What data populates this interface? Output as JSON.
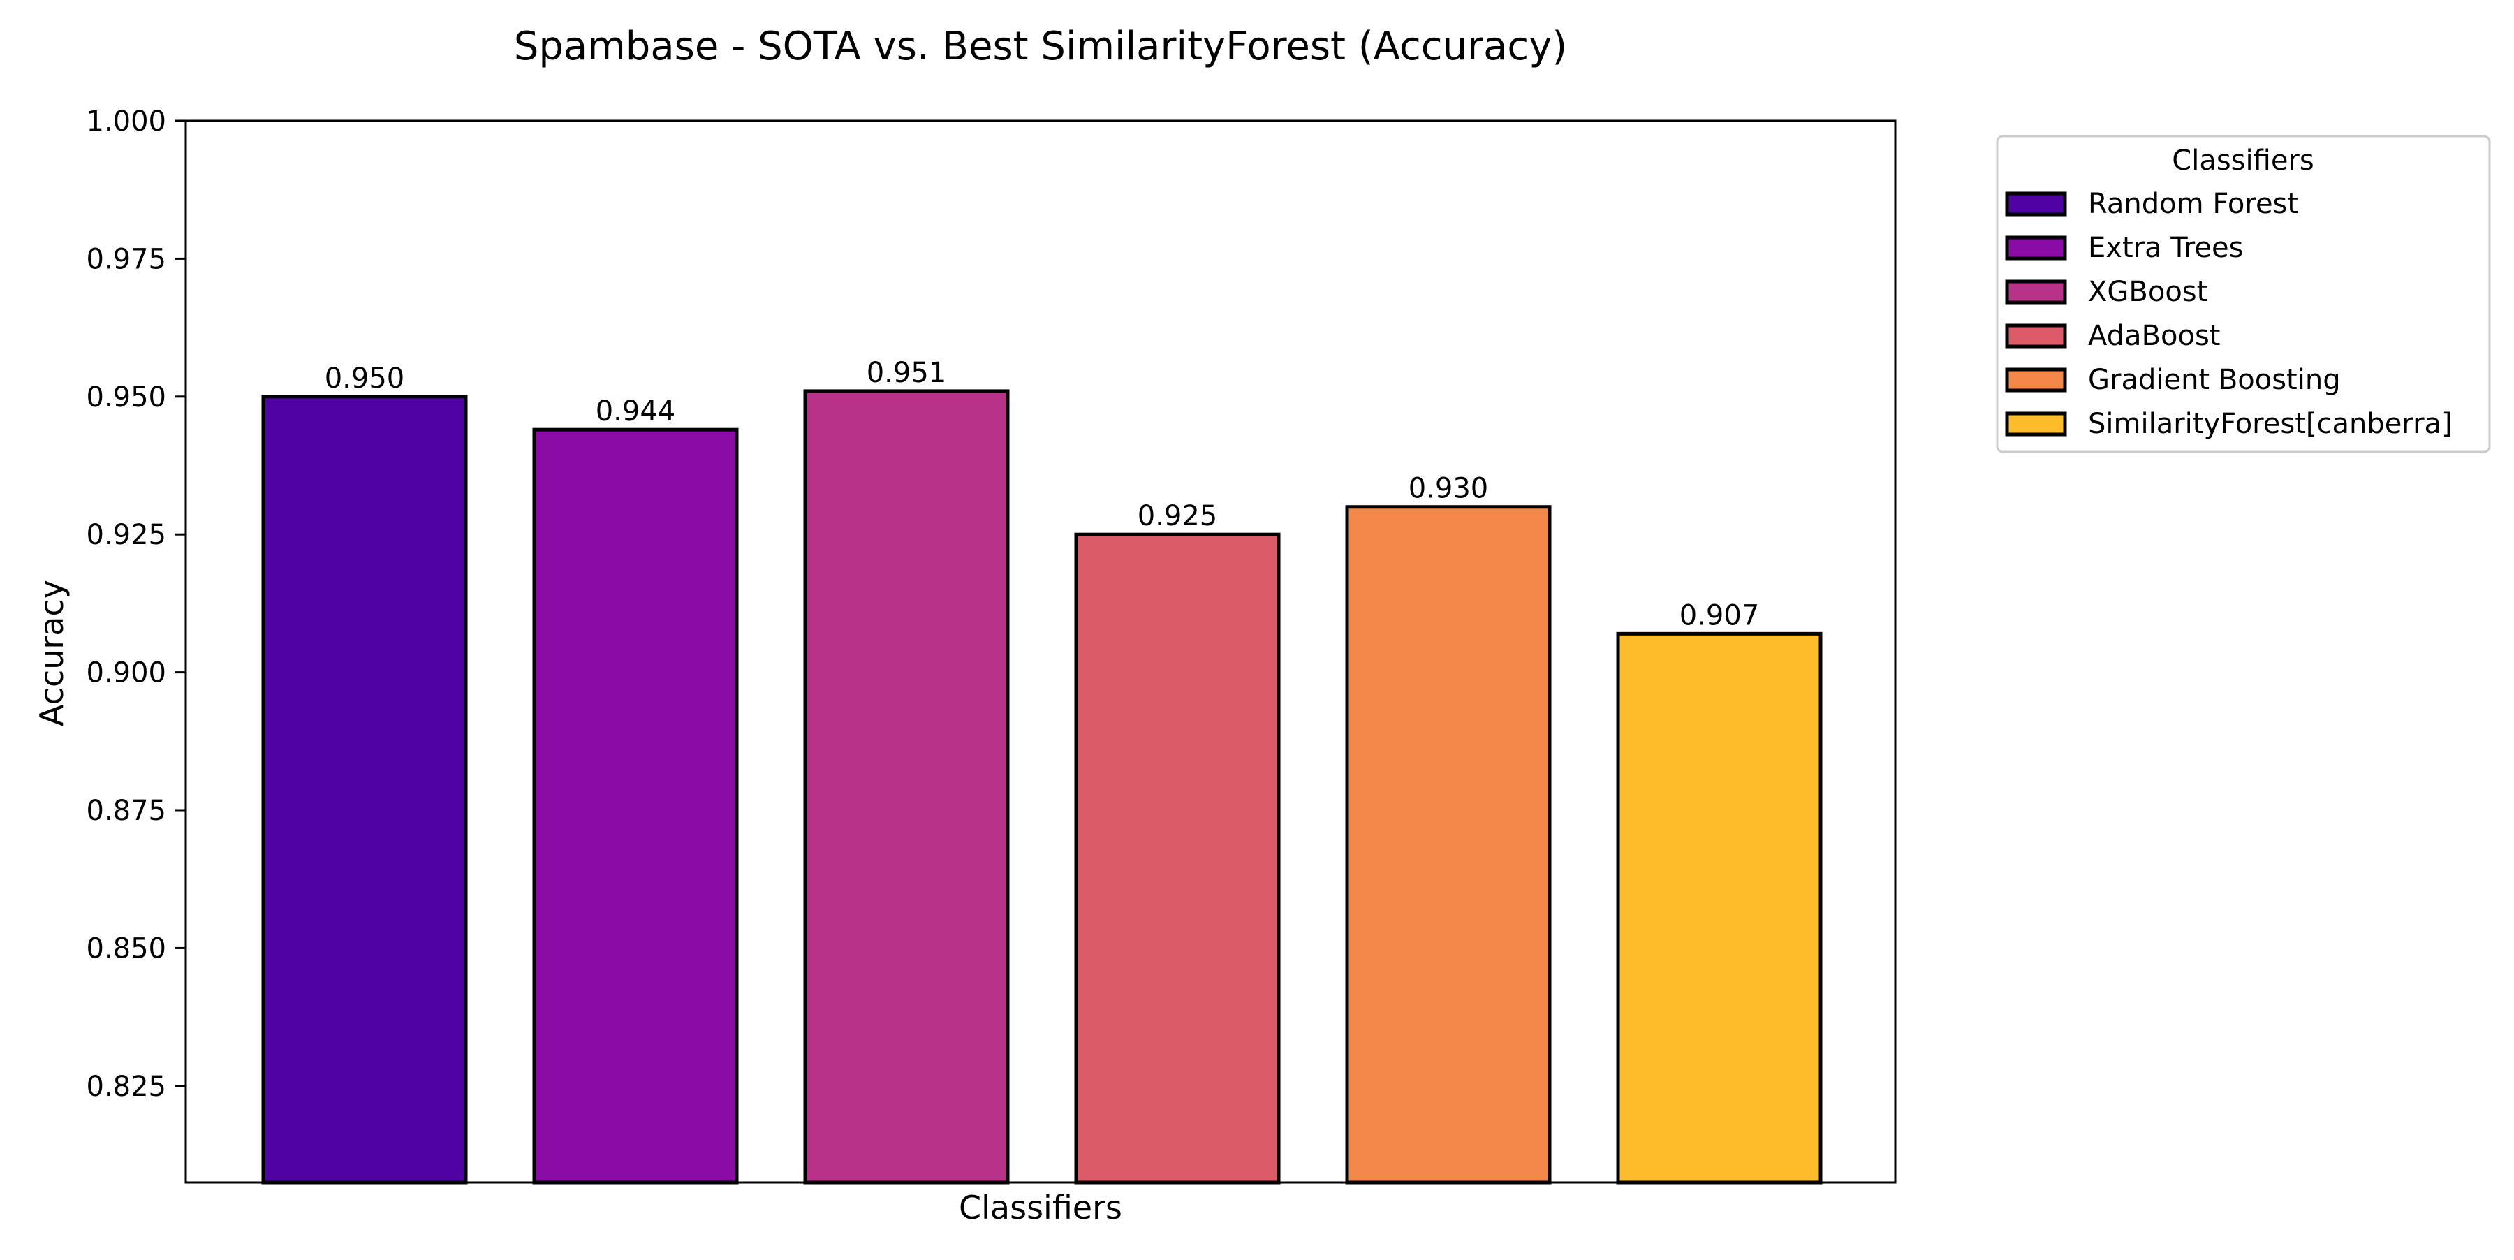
{
  "chart_data": {
    "type": "bar",
    "title": "Spambase - SOTA vs. Best SimilarityForest (Accuracy)",
    "xlabel": "Classifiers",
    "ylabel": "Accuracy",
    "ylim": [
      0.8075,
      1.0
    ],
    "yticks": [
      "0.825",
      "0.850",
      "0.875",
      "0.900",
      "0.925",
      "0.950",
      "0.975",
      "1.000"
    ],
    "grid": false,
    "categories": [
      "Random Forest",
      "Extra Trees",
      "XGBoost",
      "AdaBoost",
      "Gradient Boosting",
      "SimilarityForest[canberra]"
    ],
    "values": [
      0.95,
      0.944,
      0.951,
      0.925,
      0.93,
      0.907
    ],
    "value_labels": [
      "0.950",
      "0.944",
      "0.951",
      "0.925",
      "0.930",
      "0.907"
    ],
    "colors": [
      "#5002a2",
      "#8a0ba6",
      "#b83289",
      "#db5b68",
      "#f48849",
      "#febc2a"
    ],
    "legend": {
      "title": "Classifiers",
      "placement": "outside right, top",
      "entries": [
        "Random Forest",
        "Extra Trees",
        "XGBoost",
        "AdaBoost",
        "Gradient Boosting",
        "SimilarityForest[canberra]"
      ]
    }
  }
}
